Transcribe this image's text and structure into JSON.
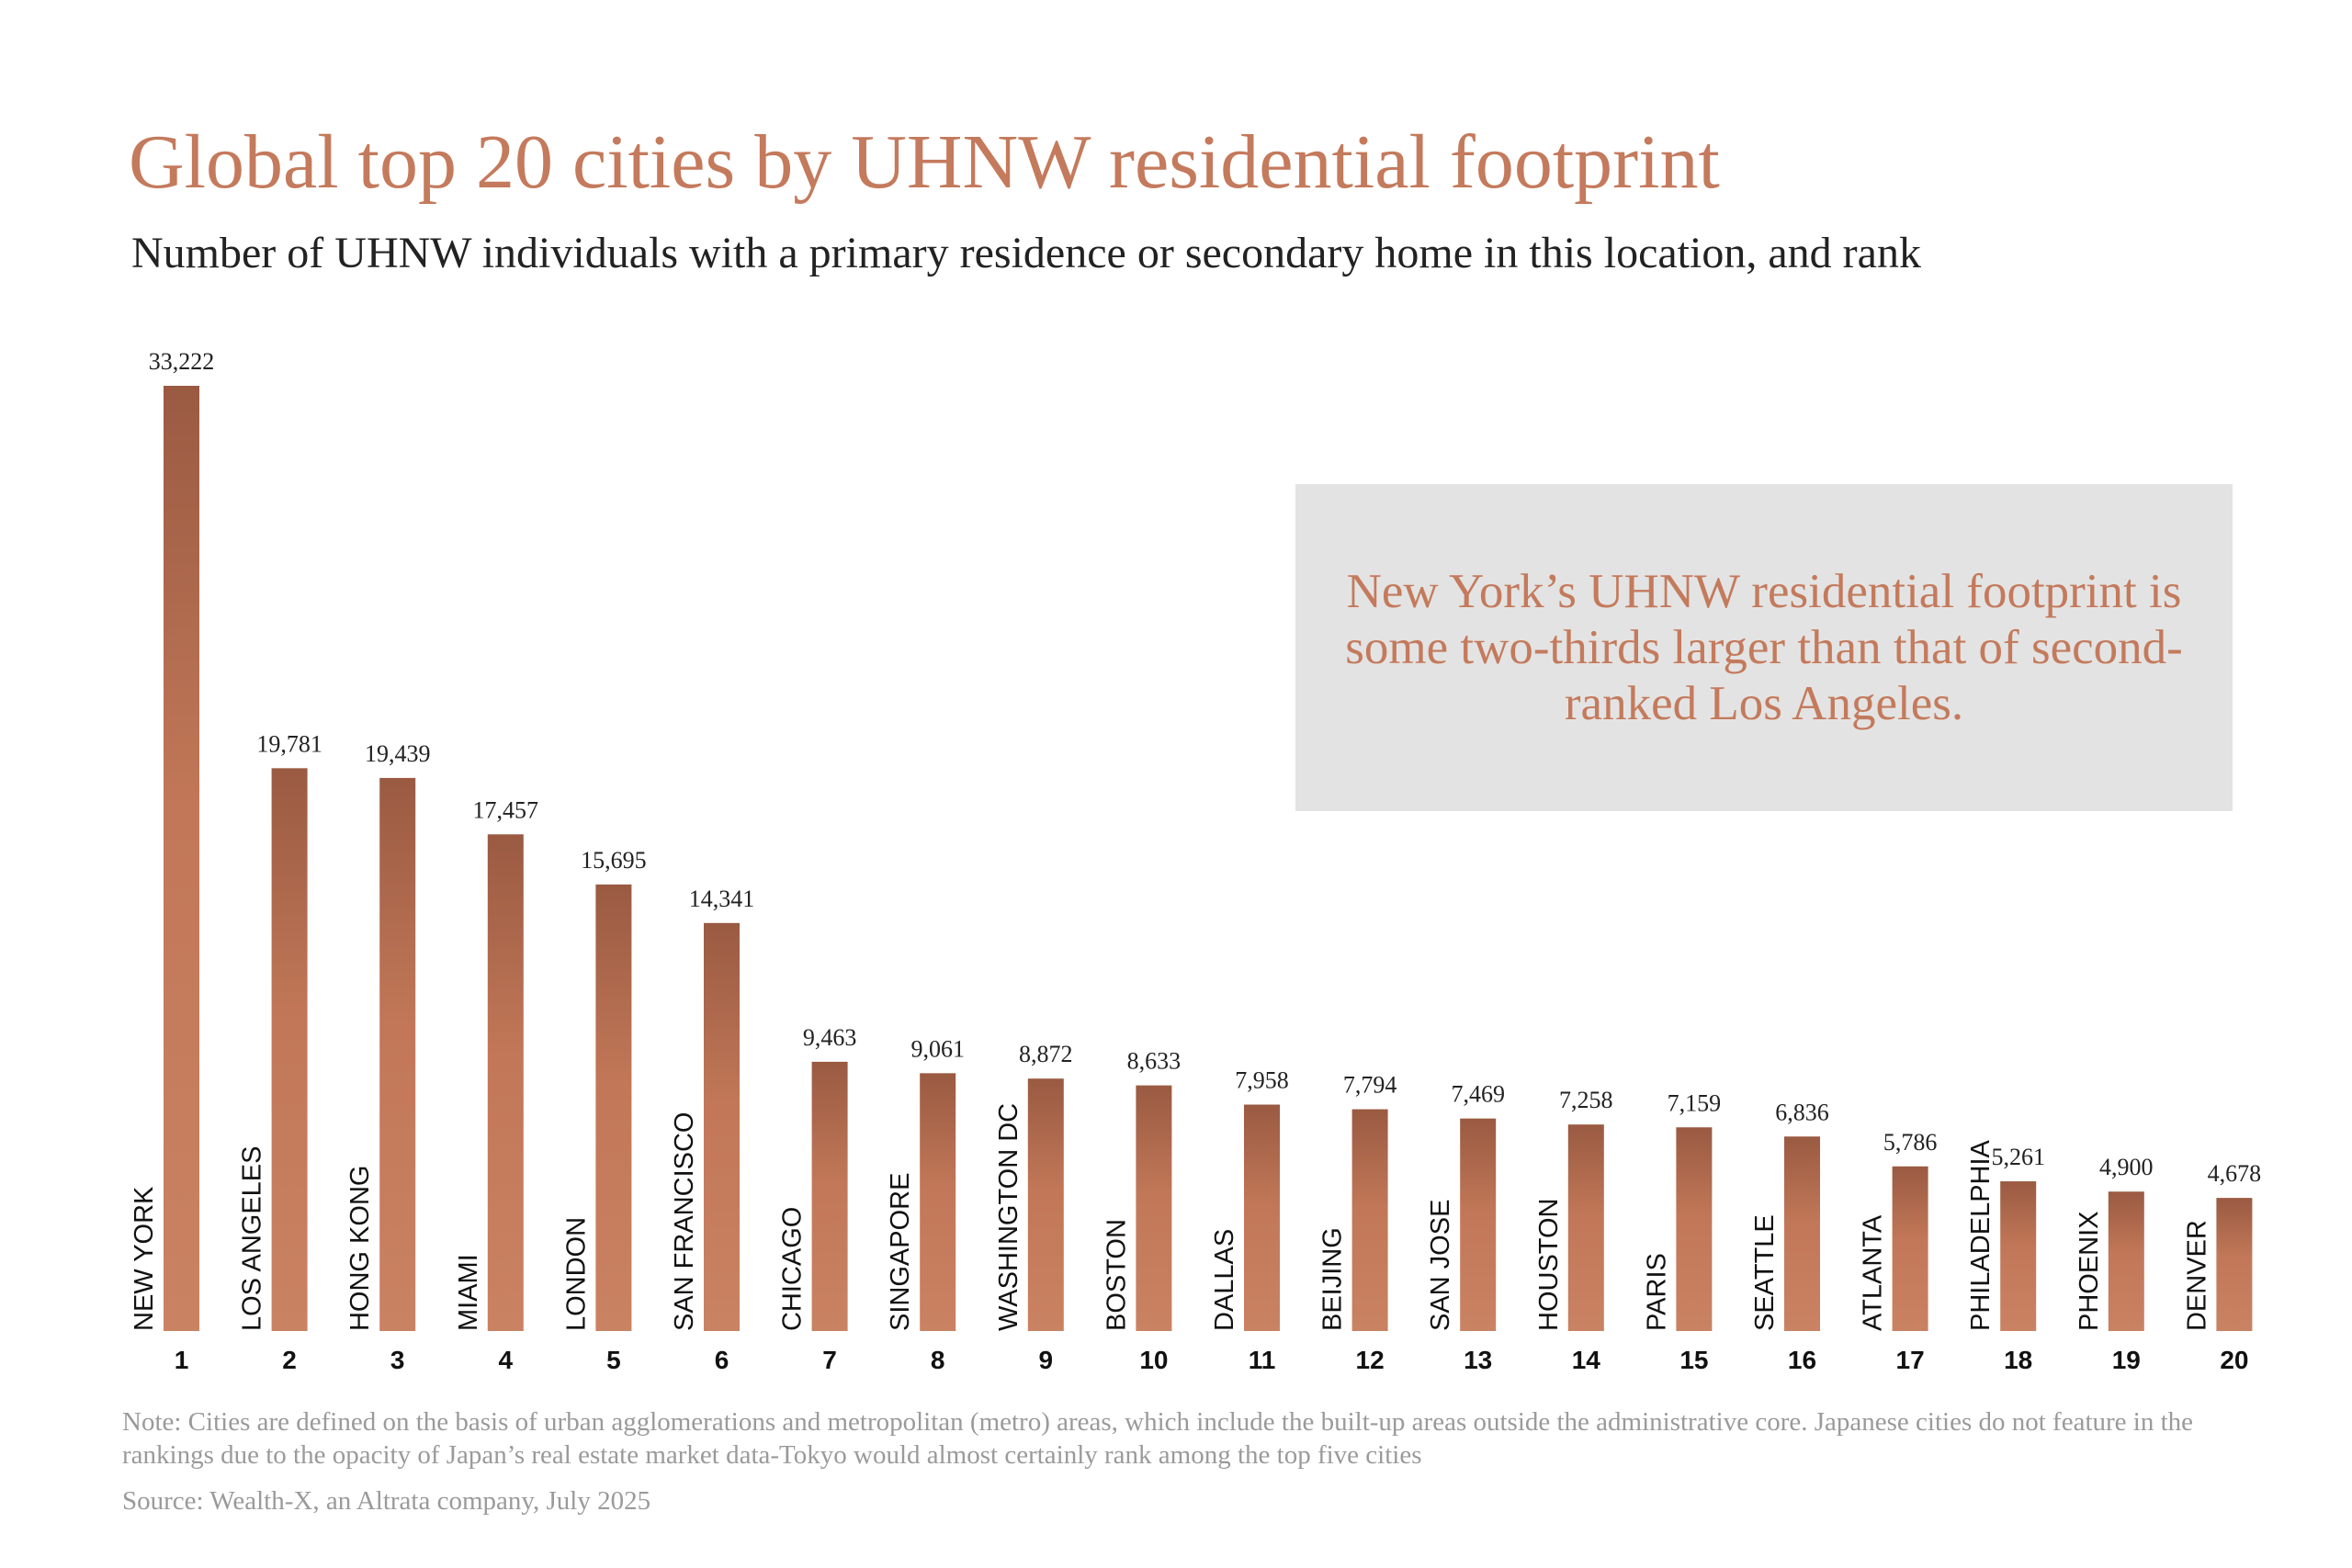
{
  "chart_data": {
    "type": "bar",
    "title": "Global top 20 cities by UHNW residential footprint",
    "subtitle": "Number of UHNW individuals with a primary residence or secondary home in this location, and rank",
    "categories": [
      "NEW YORK",
      "LOS ANGELES",
      "HONG KONG",
      "MIAMI",
      "LONDON",
      "SAN FRANCISCO",
      "CHICAGO",
      "SINGAPORE",
      "WASHINGTON DC",
      "BOSTON",
      "DALLAS",
      "BEIJING",
      "SAN JOSE",
      "HOUSTON",
      "PARIS",
      "SEATTLE",
      "ATLANTA",
      "PHILADELPHIA",
      "PHOENIX",
      "DENVER"
    ],
    "ranks": [
      "1",
      "2",
      "3",
      "4",
      "5",
      "6",
      "7",
      "8",
      "9",
      "10",
      "11",
      "12",
      "13",
      "14",
      "15",
      "16",
      "17",
      "18",
      "19",
      "20"
    ],
    "values": [
      33222,
      19781,
      19439,
      17457,
      15695,
      14341,
      9463,
      9061,
      8872,
      8633,
      7958,
      7794,
      7469,
      7258,
      7159,
      6836,
      5786,
      5261,
      4900,
      4678
    ],
    "value_labels": [
      "33,222",
      "19,781",
      "19,439",
      "17,457",
      "15,695",
      "14,341",
      "9,463",
      "9,061",
      "8,872",
      "8,633",
      "7,958",
      "7,794",
      "7,469",
      "7,258",
      "7,159",
      "6,836",
      "5,786",
      "5,261",
      "4,900",
      "4,678"
    ],
    "xlabel": "",
    "ylabel": "",
    "ylim": [
      0,
      33222
    ],
    "grid": false,
    "legend": "none",
    "colors": {
      "bar_top": "#9a5a42",
      "bar_bottom": "#c98060",
      "title": "#c47a5c"
    }
  },
  "callout": {
    "text": "New York’s UHNW residential footprint is some two-thirds larger than that of second-ranked Los Angeles."
  },
  "footer": {
    "note": "Note: Cities are defined on the basis of urban agglomerations and metropolitan (metro) areas, which include the built-up areas outside the administrative core. Japanese cities do not feature in the rankings due to the opacity of Japan’s real estate market data-Tokyo would almost certainly rank among the top five cities",
    "source": "Source: Wealth-X, an Altrata company, July 2025"
  }
}
